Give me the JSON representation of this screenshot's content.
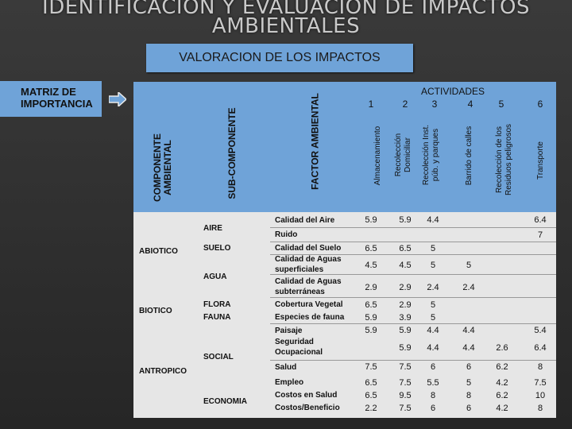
{
  "title": {
    "line1": "IDENTIFICACION Y EVALUACION DE IMPACTOS",
    "line2": "AMBIENTALES"
  },
  "banner": "VALORACION DE LOS IMPACTOS",
  "matrix_label": {
    "line1": "MATRIZ DE",
    "line2": "IMPORTANCIA"
  },
  "headers": {
    "componente": {
      "line1": "COMPONENTE",
      "line2": "AMBIENTAL"
    },
    "subcomponente": "SUB-COMPONENTE",
    "factor": "FACTOR AMBIENTAL",
    "actividades": "ACTIVIDADES",
    "activity_numbers": [
      "1",
      "2",
      "3",
      "4",
      "5",
      "6"
    ],
    "activities": [
      {
        "line1": "Almacenamiento",
        "line2": ""
      },
      {
        "line1": "Recolección",
        "line2": "Domiciliar"
      },
      {
        "line1": "Recolección  Inst.",
        "line2": "púb. y parques"
      },
      {
        "line1": "Barrido de calles",
        "line2": ""
      },
      {
        "line1": "Recolección de los",
        "line2": "Residuos  peligrosos"
      },
      {
        "line1": "Transporte",
        "line2": ""
      }
    ]
  },
  "components": [
    "ABIOTICO",
    "BIOTICO",
    "ANTROPICO"
  ],
  "subcomponents": [
    "AIRE",
    "SUELO",
    "AGUA",
    "FLORA",
    "FAUNA",
    "SOCIAL",
    "ECONOMIA"
  ],
  "factors": [
    "Calidad del Aire",
    "Ruido",
    "Calidad del Suelo",
    "Calidad de Aguas",
    "superficiales",
    "Calidad de Aguas",
    "subterráneas",
    "Cobertura Vegetal",
    "Especies de fauna",
    "Paisaje",
    "Seguridad",
    "Ocupacional",
    "Salud",
    "Empleo",
    "Costos en Salud",
    "Costos/Beneficio"
  ],
  "values": {
    "aire": [
      "5.9",
      "5.9",
      "4.4",
      "6.4"
    ],
    "ruido": [
      "7"
    ],
    "suelo": [
      "6.5",
      "6.5",
      "5"
    ],
    "agua_sup": [
      "4.5",
      "4.5",
      "5",
      "5"
    ],
    "agua_sub": [
      "2.9",
      "2.9",
      "2.4",
      "2.4"
    ],
    "cobertura": [
      "6.5",
      "2.9",
      "5"
    ],
    "fauna": [
      "5.9",
      "3.9",
      "5"
    ],
    "paisaje": [
      "5.9",
      "5.9",
      "4.4",
      "4.4",
      "5.4"
    ],
    "seguridad": [
      "5.9",
      "4.4",
      "4.4",
      "2.6",
      "6.4"
    ],
    "salud": [
      "7.5",
      "7.5",
      "6",
      "6",
      "6.2",
      "8"
    ],
    "empleo": [
      "6.5",
      "7.5",
      "5.5",
      "5",
      "4.2",
      "7.5"
    ],
    "costos_salud": [
      "6.5",
      "9.5",
      "8",
      "8",
      "6.2",
      "10"
    ],
    "costos_beneficio": [
      "2.2",
      "7.5",
      "6",
      "6",
      "4.2",
      "8"
    ]
  }
}
